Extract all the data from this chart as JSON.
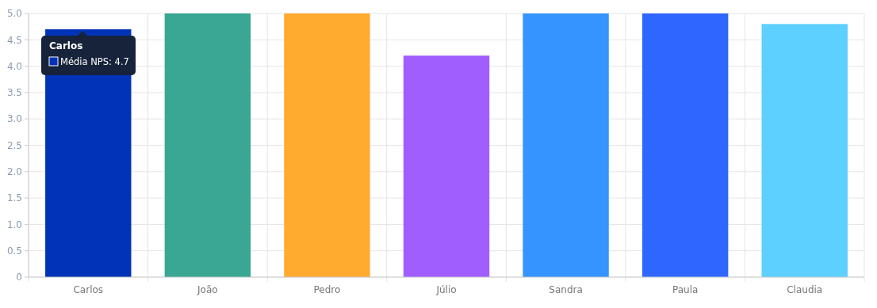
{
  "chart_data": {
    "type": "bar",
    "categories": [
      "Carlos",
      "João",
      "Pedro",
      "Júlio",
      "Sandra",
      "Paula",
      "Claudia"
    ],
    "values": [
      4.7,
      5,
      5,
      4.2,
      5,
      5,
      4.8
    ],
    "colors": [
      "#0033b8",
      "#3aa694",
      "#ffab30",
      "#a05eff",
      "#3594ff",
      "#2f66ff",
      "#5dd0ff"
    ],
    "ylim": [
      0,
      5
    ],
    "yticks": [
      {
        "value": 0,
        "label": "0"
      },
      0.5,
      {
        "value": 1,
        "label": "1.0"
      },
      1.5,
      {
        "value": 2,
        "label": "2.0"
      },
      2.5,
      {
        "value": 3,
        "label": "3.0"
      },
      3.5,
      {
        "value": 4,
        "label": "4.0"
      },
      4.5,
      {
        "value": 5,
        "label": "5.0"
      }
    ],
    "grid": true,
    "annotations": [
      "Carlos",
      "Média NPS: 4.7"
    ]
  }
}
